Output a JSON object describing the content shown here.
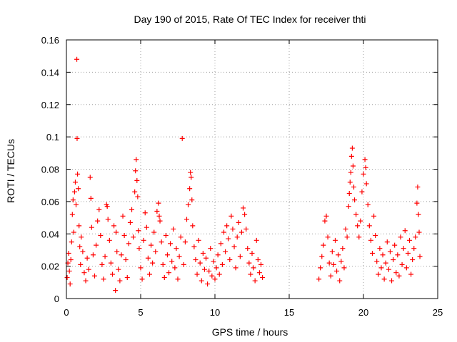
{
  "chart_data": {
    "type": "scatter",
    "title": "Day 190 of 2015, Rate Of TEC Index for receiver thti",
    "xlabel": "GPS time / hours",
    "ylabel": "ROTI / TECUs",
    "xlim": [
      0,
      25
    ],
    "ylim": [
      0,
      0.16
    ],
    "xticks": [
      0,
      5,
      10,
      15,
      20,
      25
    ],
    "xtick_labels": [
      "0",
      "5",
      "10",
      "15",
      "20",
      "25"
    ],
    "yticks": [
      0,
      0.02,
      0.04,
      0.06,
      0.08,
      0.1,
      0.12,
      0.14,
      0.16
    ],
    "ytick_labels": [
      "0",
      "0.02",
      "0.04",
      "0.06",
      "0.08",
      "0.1",
      "0.12",
      "0.14",
      "0.16"
    ],
    "grid": true,
    "marker": "+",
    "color": "#ff0000",
    "series": [
      {
        "name": "ROTI",
        "points": [
          [
            0.05,
            0.013
          ],
          [
            0.1,
            0.022
          ],
          [
            0.15,
            0.028
          ],
          [
            0.2,
            0.017
          ],
          [
            0.25,
            0.009
          ],
          [
            0.3,
            0.024
          ],
          [
            0.35,
            0.035
          ],
          [
            0.4,
            0.052
          ],
          [
            0.45,
            0.061
          ],
          [
            0.5,
            0.041
          ],
          [
            0.55,
            0.066
          ],
          [
            0.6,
            0.072
          ],
          [
            0.65,
            0.058
          ],
          [
            0.7,
            0.148
          ],
          [
            0.72,
            0.099
          ],
          [
            0.75,
            0.077
          ],
          [
            0.8,
            0.068
          ],
          [
            0.85,
            0.045
          ],
          [
            0.9,
            0.032
          ],
          [
            0.95,
            0.021
          ],
          [
            1.0,
            0.038
          ],
          [
            1.1,
            0.029
          ],
          [
            1.2,
            0.016
          ],
          [
            1.3,
            0.011
          ],
          [
            1.4,
            0.025
          ],
          [
            1.5,
            0.018
          ],
          [
            1.6,
            0.075
          ],
          [
            1.65,
            0.062
          ],
          [
            1.7,
            0.044
          ],
          [
            1.8,
            0.027
          ],
          [
            1.9,
            0.014
          ],
          [
            2.0,
            0.033
          ],
          [
            2.1,
            0.048
          ],
          [
            2.2,
            0.055
          ],
          [
            2.3,
            0.039
          ],
          [
            2.4,
            0.021
          ],
          [
            2.5,
            0.012
          ],
          [
            2.6,
            0.026
          ],
          [
            2.7,
            0.058
          ],
          [
            2.75,
            0.057
          ],
          [
            2.8,
            0.049
          ],
          [
            2.9,
            0.036
          ],
          [
            3.0,
            0.022
          ],
          [
            3.1,
            0.015
          ],
          [
            3.2,
            0.045
          ],
          [
            3.3,
            0.005
          ],
          [
            3.35,
            0.041
          ],
          [
            3.4,
            0.029
          ],
          [
            3.5,
            0.018
          ],
          [
            3.6,
            0.011
          ],
          [
            3.7,
            0.027
          ],
          [
            3.8,
            0.051
          ],
          [
            3.9,
            0.039
          ],
          [
            4.0,
            0.024
          ],
          [
            4.1,
            0.013
          ],
          [
            4.2,
            0.034
          ],
          [
            4.3,
            0.047
          ],
          [
            4.4,
            0.055
          ],
          [
            4.5,
            0.038
          ],
          [
            4.6,
            0.066
          ],
          [
            4.65,
            0.079
          ],
          [
            4.7,
            0.086
          ],
          [
            4.75,
            0.073
          ],
          [
            4.8,
            0.063
          ],
          [
            4.85,
            0.042
          ],
          [
            4.9,
            0.031
          ],
          [
            5.0,
            0.019
          ],
          [
            5.1,
            0.012
          ],
          [
            5.2,
            0.036
          ],
          [
            5.3,
            0.053
          ],
          [
            5.4,
            0.044
          ],
          [
            5.5,
            0.025
          ],
          [
            5.6,
            0.015
          ],
          [
            5.7,
            0.033
          ],
          [
            5.8,
            0.022
          ],
          [
            5.9,
            0.041
          ],
          [
            6.0,
            0.029
          ],
          [
            6.1,
            0.054
          ],
          [
            6.2,
            0.059
          ],
          [
            6.25,
            0.051
          ],
          [
            6.3,
            0.048
          ],
          [
            6.4,
            0.035
          ],
          [
            6.5,
            0.021
          ],
          [
            6.6,
            0.013
          ],
          [
            6.7,
            0.039
          ],
          [
            6.8,
            0.027
          ],
          [
            6.9,
            0.016
          ],
          [
            7.0,
            0.034
          ],
          [
            7.1,
            0.023
          ],
          [
            7.2,
            0.043
          ],
          [
            7.3,
            0.019
          ],
          [
            7.4,
            0.031
          ],
          [
            7.5,
            0.012
          ],
          [
            7.6,
            0.026
          ],
          [
            7.7,
            0.038
          ],
          [
            7.8,
            0.099
          ],
          [
            7.9,
            0.021
          ],
          [
            8.0,
            0.035
          ],
          [
            8.1,
            0.049
          ],
          [
            8.2,
            0.058
          ],
          [
            8.3,
            0.068
          ],
          [
            8.35,
            0.078
          ],
          [
            8.4,
            0.075
          ],
          [
            8.45,
            0.061
          ],
          [
            8.5,
            0.045
          ],
          [
            8.6,
            0.032
          ],
          [
            8.7,
            0.024
          ],
          [
            8.8,
            0.015
          ],
          [
            8.9,
            0.036
          ],
          [
            9.0,
            0.022
          ],
          [
            9.1,
            0.011
          ],
          [
            9.2,
            0.028
          ],
          [
            9.3,
            0.018
          ],
          [
            9.4,
            0.025
          ],
          [
            9.5,
            0.009
          ],
          [
            9.6,
            0.017
          ],
          [
            9.7,
            0.031
          ],
          [
            9.8,
            0.014
          ],
          [
            9.9,
            0.023
          ],
          [
            10.0,
            0.012
          ],
          [
            10.1,
            0.019
          ],
          [
            10.2,
            0.027
          ],
          [
            10.3,
            0.015
          ],
          [
            10.4,
            0.034
          ],
          [
            10.5,
            0.021
          ],
          [
            10.6,
            0.041
          ],
          [
            10.7,
            0.029
          ],
          [
            10.8,
            0.045
          ],
          [
            10.9,
            0.037
          ],
          [
            11.0,
            0.024
          ],
          [
            11.1,
            0.051
          ],
          [
            11.2,
            0.043
          ],
          [
            11.3,
            0.032
          ],
          [
            11.4,
            0.019
          ],
          [
            11.5,
            0.038
          ],
          [
            11.6,
            0.047
          ],
          [
            11.7,
            0.026
          ],
          [
            11.8,
            0.041
          ],
          [
            11.9,
            0.056
          ],
          [
            12.0,
            0.052
          ],
          [
            12.1,
            0.043
          ],
          [
            12.2,
            0.031
          ],
          [
            12.3,
            0.022
          ],
          [
            12.4,
            0.015
          ],
          [
            12.5,
            0.028
          ],
          [
            12.6,
            0.019
          ],
          [
            12.7,
            0.011
          ],
          [
            12.8,
            0.036
          ],
          [
            12.9,
            0.024
          ],
          [
            13.0,
            0.016
          ],
          [
            13.1,
            0.021
          ],
          [
            13.2,
            0.013
          ],
          [
            17.0,
            0.012
          ],
          [
            17.1,
            0.019
          ],
          [
            17.2,
            0.026
          ],
          [
            17.3,
            0.033
          ],
          [
            17.4,
            0.048
          ],
          [
            17.5,
            0.051
          ],
          [
            17.6,
            0.038
          ],
          [
            17.7,
            0.022
          ],
          [
            17.8,
            0.014
          ],
          [
            17.9,
            0.029
          ],
          [
            18.0,
            0.021
          ],
          [
            18.1,
            0.036
          ],
          [
            18.2,
            0.017
          ],
          [
            18.3,
            0.027
          ],
          [
            18.4,
            0.011
          ],
          [
            18.5,
            0.023
          ],
          [
            18.6,
            0.031
          ],
          [
            18.7,
            0.019
          ],
          [
            18.8,
            0.043
          ],
          [
            18.9,
            0.038
          ],
          [
            19.0,
            0.057
          ],
          [
            19.05,
            0.065
          ],
          [
            19.1,
            0.072
          ],
          [
            19.15,
            0.078
          ],
          [
            19.2,
            0.088
          ],
          [
            19.25,
            0.093
          ],
          [
            19.3,
            0.082
          ],
          [
            19.35,
            0.069
          ],
          [
            19.4,
            0.061
          ],
          [
            19.5,
            0.052
          ],
          [
            19.6,
            0.045
          ],
          [
            19.7,
            0.038
          ],
          [
            19.8,
            0.048
          ],
          [
            19.9,
            0.066
          ],
          [
            20.0,
            0.077
          ],
          [
            20.1,
            0.086
          ],
          [
            20.15,
            0.081
          ],
          [
            20.2,
            0.071
          ],
          [
            20.3,
            0.058
          ],
          [
            20.4,
            0.045
          ],
          [
            20.5,
            0.036
          ],
          [
            20.6,
            0.028
          ],
          [
            20.7,
            0.051
          ],
          [
            20.8,
            0.039
          ],
          [
            20.9,
            0.023
          ],
          [
            21.0,
            0.015
          ],
          [
            21.1,
            0.031
          ],
          [
            21.2,
            0.019
          ],
          [
            21.3,
            0.027
          ],
          [
            21.4,
            0.012
          ],
          [
            21.5,
            0.022
          ],
          [
            21.6,
            0.035
          ],
          [
            21.7,
            0.018
          ],
          [
            21.8,
            0.029
          ],
          [
            21.9,
            0.011
          ],
          [
            22.0,
            0.024
          ],
          [
            22.1,
            0.033
          ],
          [
            22.2,
            0.016
          ],
          [
            22.3,
            0.027
          ],
          [
            22.4,
            0.014
          ],
          [
            22.5,
            0.038
          ],
          [
            22.6,
            0.021
          ],
          [
            22.7,
            0.031
          ],
          [
            22.8,
            0.042
          ],
          [
            22.9,
            0.019
          ],
          [
            23.0,
            0.028
          ],
          [
            23.1,
            0.036
          ],
          [
            23.2,
            0.015
          ],
          [
            23.3,
            0.024
          ],
          [
            23.4,
            0.031
          ],
          [
            23.5,
            0.038
          ],
          [
            23.6,
            0.059
          ],
          [
            23.65,
            0.069
          ],
          [
            23.7,
            0.052
          ],
          [
            23.75,
            0.041
          ],
          [
            23.8,
            0.026
          ]
        ]
      }
    ]
  }
}
